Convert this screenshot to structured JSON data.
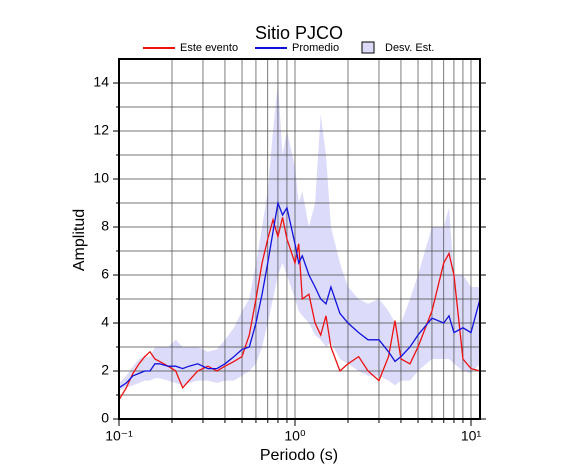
{
  "chart_data": {
    "type": "line",
    "title": "Sitio PJCO",
    "xlabel": "Periodo (s)",
    "ylabel": "Amplitud",
    "xscale": "log",
    "grid": true,
    "xlim": [
      0.1,
      11.25
    ],
    "ylim": [
      0,
      15
    ],
    "xticks": [
      {
        "value": 0.1,
        "label": "10⁻¹"
      },
      {
        "value": 1,
        "label": "10⁰"
      },
      {
        "value": 10,
        "label": "10¹"
      }
    ],
    "x_minor_ticks": [
      0.2,
      0.3,
      0.4,
      0.5,
      0.6,
      0.7,
      0.8,
      0.9,
      2,
      3,
      4,
      5,
      6,
      7,
      8,
      9
    ],
    "yticks": [
      0,
      2,
      4,
      6,
      8,
      10,
      12,
      14
    ],
    "y_minor_ticks": [
      1,
      3,
      5,
      7,
      9,
      11,
      13
    ],
    "x": [
      0.1,
      0.11,
      0.12,
      0.13,
      0.14,
      0.15,
      0.16,
      0.17,
      0.19,
      0.21,
      0.23,
      0.25,
      0.28,
      0.32,
      0.36,
      0.4,
      0.45,
      0.5,
      0.55,
      0.6,
      0.65,
      0.7,
      0.75,
      0.8,
      0.85,
      0.9,
      1.0,
      1.05,
      1.1,
      1.2,
      1.3,
      1.4,
      1.5,
      1.6,
      1.8,
      2.0,
      2.3,
      2.6,
      3.0,
      3.4,
      3.7,
      4.0,
      4.5,
      5.0,
      6.0,
      7.0,
      7.5,
      8.0,
      9.0,
      10.0,
      11.25
    ],
    "band": {
      "name": "Desv. Est.",
      "color": "#dcdcfa",
      "lower": [
        1.2,
        1.3,
        1.4,
        1.5,
        1.6,
        1.6,
        1.7,
        1.7,
        1.6,
        1.5,
        1.4,
        1.5,
        1.6,
        1.6,
        1.5,
        1.6,
        1.6,
        1.8,
        2.0,
        2.3,
        3.0,
        4.0,
        5.0,
        6.0,
        6.5,
        6.0,
        5.0,
        4.5,
        4.3,
        4.0,
        3.5,
        3.3,
        3.0,
        3.2,
        2.5,
        2.3,
        2.0,
        1.8,
        1.8,
        1.6,
        1.4,
        1.6,
        1.6,
        2.0,
        2.5,
        2.5,
        2.5,
        2.3,
        2.0,
        1.9,
        2.3
      ],
      "upper": [
        1.5,
        1.8,
        2.2,
        2.5,
        2.6,
        2.6,
        3.0,
        3.0,
        3.0,
        3.3,
        3.0,
        3.0,
        3.0,
        2.8,
        2.9,
        3.3,
        3.8,
        4.5,
        5.0,
        6.5,
        8.0,
        9.5,
        12.0,
        14.0,
        11.0,
        12.0,
        10.5,
        9.0,
        9.5,
        8.0,
        9.0,
        12.7,
        11.0,
        8.0,
        6.5,
        5.5,
        5.0,
        4.8,
        5.0,
        4.5,
        4.0,
        4.0,
        5.0,
        6.0,
        8.0,
        8.0,
        8.8,
        6.0,
        6.0,
        5.5,
        5.5
      ]
    },
    "series": [
      {
        "name": "Este evento",
        "color": "#ee1111",
        "values": [
          0.8,
          1.3,
          1.9,
          2.3,
          2.6,
          2.8,
          2.5,
          2.4,
          2.2,
          2.0,
          1.3,
          1.6,
          2.0,
          2.2,
          2.0,
          2.2,
          2.4,
          2.6,
          3.5,
          5.0,
          6.5,
          7.5,
          8.3,
          7.6,
          8.4,
          7.5,
          6.5,
          7.3,
          5.0,
          5.2,
          4.0,
          3.5,
          4.3,
          3.0,
          2.0,
          2.3,
          2.6,
          2.0,
          1.6,
          2.6,
          4.1,
          2.5,
          2.3,
          3.0,
          4.5,
          6.5,
          6.9,
          6.0,
          2.5,
          2.1,
          2.0
        ]
      },
      {
        "name": "Promedio",
        "color": "#1111dd",
        "values": [
          1.3,
          1.5,
          1.8,
          1.9,
          2.0,
          2.0,
          2.3,
          2.3,
          2.2,
          2.2,
          2.1,
          2.2,
          2.3,
          2.1,
          2.1,
          2.3,
          2.6,
          2.9,
          3.0,
          4.0,
          5.2,
          6.5,
          7.8,
          9.0,
          8.5,
          8.8,
          7.3,
          6.5,
          6.8,
          6.0,
          5.5,
          5.0,
          4.8,
          5.5,
          4.4,
          4.0,
          3.6,
          3.3,
          3.3,
          2.8,
          2.4,
          2.6,
          3.0,
          3.5,
          4.2,
          4.0,
          4.3,
          3.6,
          3.8,
          3.6,
          5.0
        ]
      }
    ]
  }
}
